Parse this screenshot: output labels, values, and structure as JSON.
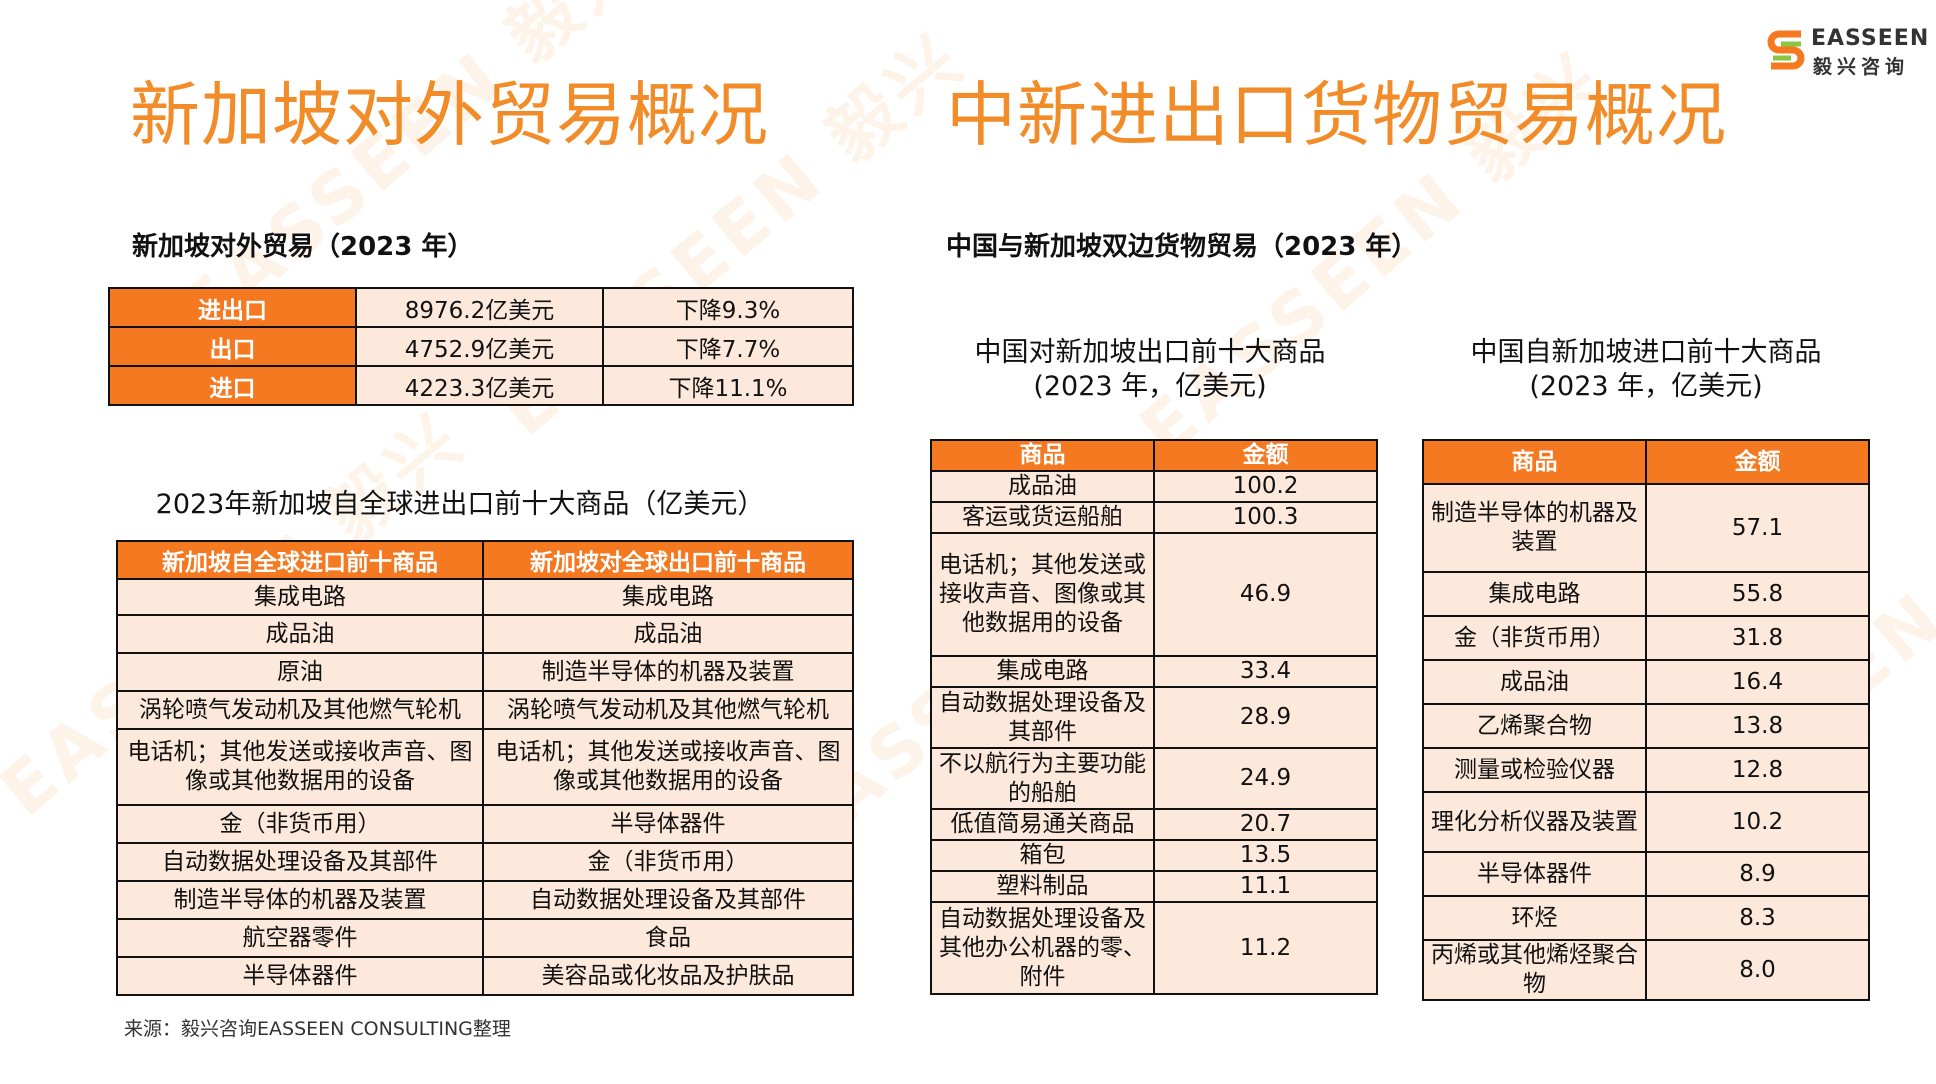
{
  "logo": {
    "en": "EASSEEN",
    "cn": "毅兴咨询",
    "icon": "ss-logo-icon"
  },
  "left": {
    "title": "新加坡对外贸易概况",
    "trade_heading": "新加坡对外贸易（2023 年）",
    "trade_rows": [
      [
        "进出口",
        "8976.2亿美元",
        "下降9.3%"
      ],
      [
        "出口",
        "4752.9亿美元",
        "下降7.7%"
      ],
      [
        "进口",
        "4223.3亿美元",
        "下降11.1%"
      ]
    ],
    "top10_caption": "2023年新加坡自全球进出口前十大商品（亿美元）",
    "top10_headers": [
      "新加坡自全球进口前十商品",
      "新加坡对全球出口前十商品"
    ],
    "top10_rows": [
      [
        "集成电路",
        "集成电路"
      ],
      [
        "成品油",
        "成品油"
      ],
      [
        "原油",
        "制造半导体的机器及装置"
      ],
      [
        "涡轮喷气发动机及其他燃气轮机",
        "涡轮喷气发动机及其他燃气轮机"
      ],
      [
        "电话机；其他发送或接收声音、图像或其他数据用的设备",
        "电话机；其他发送或接收声音、图像或其他数据用的设备"
      ],
      [
        "金（非货币用）",
        "半导体器件"
      ],
      [
        "自动数据处理设备及其部件",
        "金（非货币用）"
      ],
      [
        "制造半导体的机器及装置",
        "自动数据处理设备及其部件"
      ],
      [
        "航空器零件",
        "食品"
      ],
      [
        "半导体器件",
        "美容品或化妆品及护肤品"
      ]
    ],
    "source": "来源：毅兴咨询EASSEEN CONSULTING整理"
  },
  "right": {
    "title": "中新进出口货物贸易概况",
    "heading": "中国与新加坡双边货物贸易（2023 年）",
    "export_caption": [
      "中国对新加坡出口前十大商品",
      "(2023 年，亿美元)"
    ],
    "import_caption": [
      "中国自新加坡进口前十大商品",
      "(2023 年，亿美元)"
    ],
    "headers": [
      "商品",
      "金额"
    ],
    "export_rows": [
      [
        "成品油",
        "100.2"
      ],
      [
        "客运或货运船舶",
        "100.3"
      ],
      [
        "电话机；其他发送或接收声音、图像或其他数据用的设备",
        "46.9"
      ],
      [
        "集成电路",
        "33.4"
      ],
      [
        "自动数据处理设备及其部件",
        "28.9"
      ],
      [
        "不以航行为主要功能的船舶",
        "24.9"
      ],
      [
        "低值简易通关商品",
        "20.7"
      ],
      [
        "箱包",
        "13.5"
      ],
      [
        "塑料制品",
        "11.1"
      ],
      [
        "自动数据处理设备及其他办公机器的零、附件",
        "11.2"
      ]
    ],
    "import_rows": [
      [
        "制造半导体的机器及装置",
        "57.1"
      ],
      [
        "集成电路",
        "55.8"
      ],
      [
        "金（非货币用）",
        "31.8"
      ],
      [
        "成品油",
        "16.4"
      ],
      [
        "乙烯聚合物",
        "13.8"
      ],
      [
        "测量或检验仪器",
        "12.8"
      ],
      [
        "理化分析仪器及装置",
        "10.2"
      ],
      [
        "半导体器件",
        "8.9"
      ],
      [
        "环烃",
        "8.3"
      ],
      [
        "丙烯或其他烯烃聚合物",
        "8.0"
      ]
    ]
  }
}
